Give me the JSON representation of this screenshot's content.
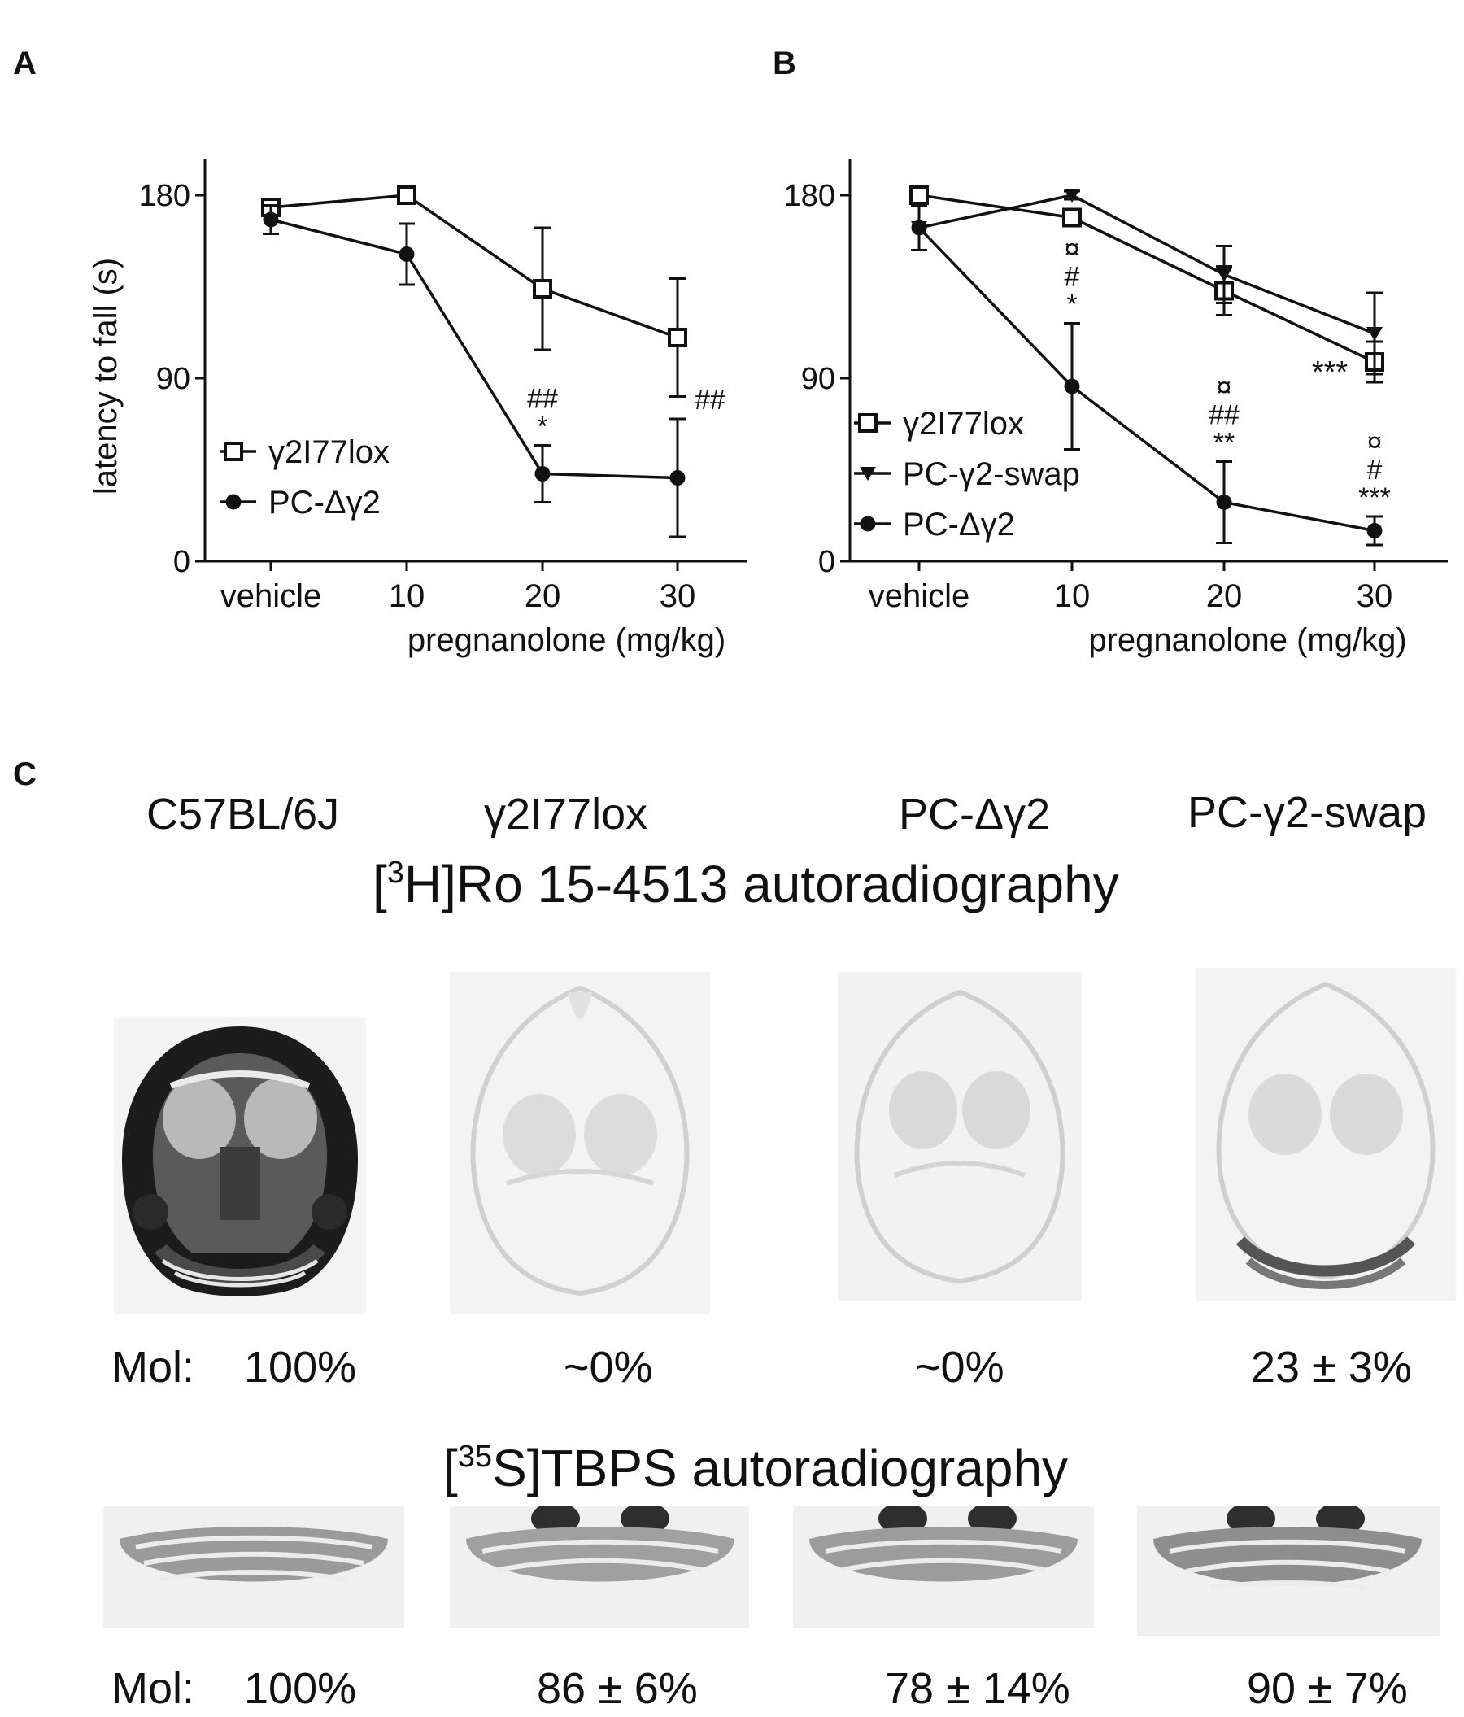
{
  "figure": {
    "panel_a_letter": "A",
    "panel_b_letter": "B",
    "panel_c_letter": "C",
    "panel_c": {
      "strains": [
        "C57BL/6J",
        "γ2I77lox",
        "PC-Δγ2",
        "PC-γ2-swap"
      ],
      "heading_ro": {
        "pre": "[",
        "sup": "3",
        "post": "H]Ro 15-4513 autoradiography"
      },
      "heading_tbps": {
        "pre": "[",
        "sup": "35",
        "post": "S]TBPS autoradiography"
      },
      "mol_label": "Mol:",
      "ro_values": [
        "100%",
        "~0%",
        "~0%",
        "23 ± 3%"
      ],
      "tbps_values": [
        "100%",
        "86 ± 6%",
        "78 ± 14%",
        "90 ± 7%"
      ]
    }
  },
  "chart_data": [
    {
      "type": "line",
      "panel": "A",
      "categories": [
        "vehicle",
        "10",
        "20",
        "30"
      ],
      "xlabel": "pregnanolone (mg/kg)",
      "ylabel": "latency to fall (s)",
      "ylim": [
        0,
        180
      ],
      "yticks": [
        "0",
        "90",
        "180"
      ],
      "legend_position": "bottom-left",
      "series": [
        {
          "name": "γ2I77lox",
          "marker": "open-square",
          "values": [
            174,
            180,
            134,
            110
          ],
          "errors": [
            3,
            0,
            30,
            29
          ]
        },
        {
          "name": "PC-Δγ2",
          "marker": "filled-circle",
          "values": [
            168,
            151,
            43,
            41
          ],
          "errors": [
            7,
            15,
            14,
            29
          ]
        }
      ],
      "annotations": [
        {
          "x": "20",
          "lines": [
            "##",
            "*"
          ]
        },
        {
          "x": "30",
          "lines": [
            "##"
          ]
        }
      ]
    },
    {
      "type": "line",
      "panel": "B",
      "categories": [
        "vehicle",
        "10",
        "20",
        "30"
      ],
      "xlabel": "pregnanolone (mg/kg)",
      "ylim": [
        0,
        180
      ],
      "yticks": [
        "0",
        "90",
        "180"
      ],
      "legend_position": "bottom-left",
      "series": [
        {
          "name": "γ2I77lox",
          "marker": "open-square",
          "values": [
            180,
            169,
            133,
            98
          ],
          "errors": [
            2,
            3,
            12,
            10
          ]
        },
        {
          "name": "PC-γ2-swap",
          "marker": "filled-triangle-down",
          "values": [
            164,
            180,
            141,
            112
          ],
          "errors": [
            11,
            2,
            14,
            20
          ]
        },
        {
          "name": "PC-Δγ2",
          "marker": "filled-circle",
          "values": [
            164,
            86,
            29,
            15
          ],
          "errors": [
            11,
            31,
            20,
            7
          ]
        }
      ],
      "annotations": [
        {
          "x": "10",
          "lines": [
            "¤",
            "#",
            "*"
          ]
        },
        {
          "x": "20",
          "lines": [
            "¤",
            "##",
            "**"
          ]
        },
        {
          "x": "30",
          "lines": [
            "¤",
            "#",
            "***"
          ]
        },
        {
          "x": "30",
          "lines": [
            "***"
          ],
          "placement": "left"
        }
      ]
    }
  ]
}
